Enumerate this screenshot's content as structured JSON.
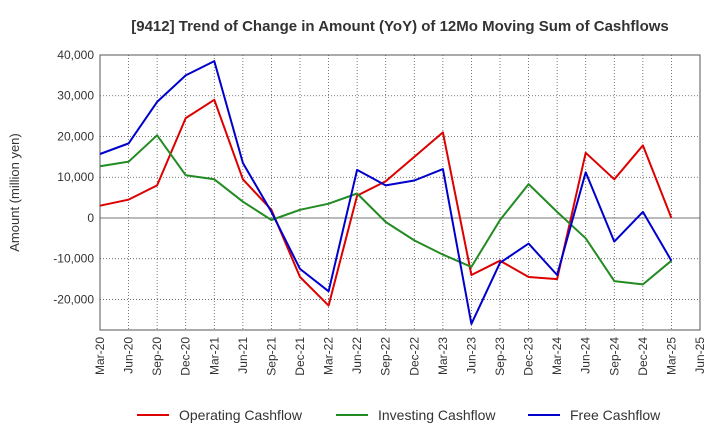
{
  "chart_data": {
    "type": "line",
    "title": "[9412]  Trend of Change in Amount (YoY) of 12Mo Moving Sum of Cashflows",
    "xlabel": "",
    "ylabel": "Amount (million yen)",
    "ylim": [
      -27500,
      40000
    ],
    "yticks": [
      40000,
      30000,
      20000,
      10000,
      0,
      -10000,
      -20000
    ],
    "ytick_labels": [
      "40,000",
      "30,000",
      "20,000",
      "10,000",
      "0",
      "-10,000",
      "-20,000"
    ],
    "categories": [
      "Mar-20",
      "Jun-20",
      "Sep-20",
      "Dec-20",
      "Mar-21",
      "Jun-21",
      "Sep-21",
      "Dec-21",
      "Mar-22",
      "Jun-22",
      "Sep-22",
      "Dec-22",
      "Mar-23",
      "Jun-23",
      "Sep-23",
      "Dec-23",
      "Mar-24",
      "Jun-24",
      "Sep-24",
      "Dec-24",
      "Mar-25",
      "Jun-25"
    ],
    "grid": true,
    "legend_position": "bottom",
    "series": [
      {
        "name": "Operating Cashflow",
        "color": "#dd0000",
        "values": [
          3000,
          4500,
          8000,
          24500,
          29000,
          9500,
          2000,
          -14500,
          -21500,
          5500,
          9000,
          15000,
          21000,
          -14000,
          -10500,
          -14500,
          -15000,
          16000,
          9500,
          17800,
          0,
          null
        ]
      },
      {
        "name": "Investing Cashflow",
        "color": "#228b22",
        "values": [
          12700,
          13800,
          20300,
          10500,
          9500,
          4000,
          -500,
          2000,
          3500,
          6000,
          -1000,
          -5500,
          -9000,
          -12000,
          -500,
          8300,
          1500,
          -5000,
          -15500,
          -16300,
          -10500,
          null
        ]
      },
      {
        "name": "Free Cashflow",
        "color": "#0000cc",
        "values": [
          15700,
          18300,
          28500,
          35000,
          38500,
          13500,
          1500,
          -12500,
          -18000,
          11800,
          8000,
          9200,
          12000,
          -26000,
          -11000,
          -6300,
          -14000,
          11200,
          -5800,
          1500,
          -10500,
          null
        ]
      }
    ]
  }
}
